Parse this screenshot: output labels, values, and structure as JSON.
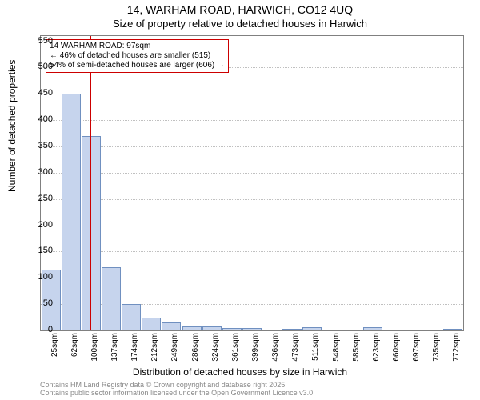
{
  "title_line1": "14, WARHAM ROAD, HARWICH, CO12 4UQ",
  "title_line2": "Size of property relative to detached houses in Harwich",
  "ylabel": "Number of detached properties",
  "xlabel": "Distribution of detached houses by size in Harwich",
  "footnote_line1": "Contains HM Land Registry data © Crown copyright and database right 2025.",
  "footnote_line2": "Contains public sector information licensed under the Open Government Licence v3.0.",
  "chart": {
    "type": "histogram",
    "ylim": [
      0,
      560
    ],
    "ytick_step": 50,
    "ymax_tick": 550,
    "plot_bg": "#ffffff",
    "bar_fill": "#c6d4ed",
    "bar_border": "#7090c0",
    "grid_color": "#c0c0c0",
    "axis_color": "#808080",
    "marker_color": "#cc0000",
    "marker_value": 97,
    "x_categories": [
      "25sqm",
      "62sqm",
      "100sqm",
      "137sqm",
      "174sqm",
      "212sqm",
      "249sqm",
      "286sqm",
      "324sqm",
      "361sqm",
      "399sqm",
      "436sqm",
      "473sqm",
      "511sqm",
      "548sqm",
      "585sqm",
      "623sqm",
      "660sqm",
      "697sqm",
      "735sqm",
      "772sqm"
    ],
    "values": [
      115,
      450,
      370,
      120,
      50,
      25,
      15,
      8,
      8,
      5,
      4,
      0,
      3,
      6,
      0,
      0,
      6,
      0,
      0,
      0,
      3
    ],
    "bar_count": 21
  },
  "annotation": {
    "line1": "14 WARHAM ROAD: 97sqm",
    "line2": "← 46% of detached houses are smaller (515)",
    "line3": "54% of semi-detached houses are larger (606) →",
    "box_border": "#cc0000",
    "box_bg": "#ffffff"
  }
}
